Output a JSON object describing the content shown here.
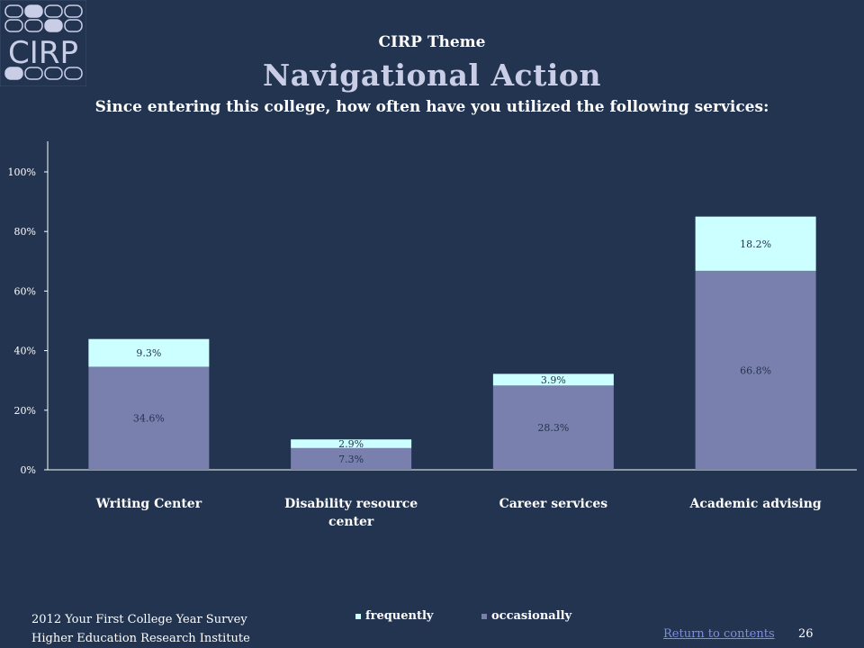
{
  "logo": {
    "text": "CIRP"
  },
  "header": {
    "theme_label": "CIRP Theme",
    "title": "Navigational Action",
    "question": "Since entering this college, how often have you utilized the following services:"
  },
  "chart_data": {
    "type": "bar",
    "stacked": true,
    "categories": [
      "Writing Center",
      "Disability resource center",
      "Career services",
      "Academic advising"
    ],
    "category_label_lines": [
      [
        "Writing Center"
      ],
      [
        "Disability resource",
        "center"
      ],
      [
        "Career services"
      ],
      [
        "Academic advising"
      ]
    ],
    "series": [
      {
        "name": "occasionally",
        "values": [
          34.6,
          7.3,
          28.3,
          66.8
        ],
        "labels": [
          "34.6%",
          "7.3%",
          "28.3%",
          "66.8%"
        ],
        "color": "#7a80ae"
      },
      {
        "name": "frequently",
        "values": [
          9.3,
          2.9,
          3.9,
          18.2
        ],
        "labels": [
          "9.3%",
          "2.9%",
          "3.9%",
          "18.2%"
        ],
        "color": "#ccffff"
      }
    ],
    "ylim": [
      0,
      100
    ],
    "yticks": [
      "0%",
      "20%",
      "40%",
      "60%",
      "80%",
      "100%"
    ],
    "ytick_values": [
      0,
      20,
      40,
      60,
      80,
      100
    ],
    "legend": [
      "frequently",
      "occasionally"
    ],
    "legend_colors": [
      "#ccffff",
      "#7a80ae"
    ]
  },
  "footer": {
    "line1": "2012 Your First College Year Survey",
    "line2": "Higher Education Research Institute",
    "return_link": "Return to contents",
    "page_number": "26"
  }
}
